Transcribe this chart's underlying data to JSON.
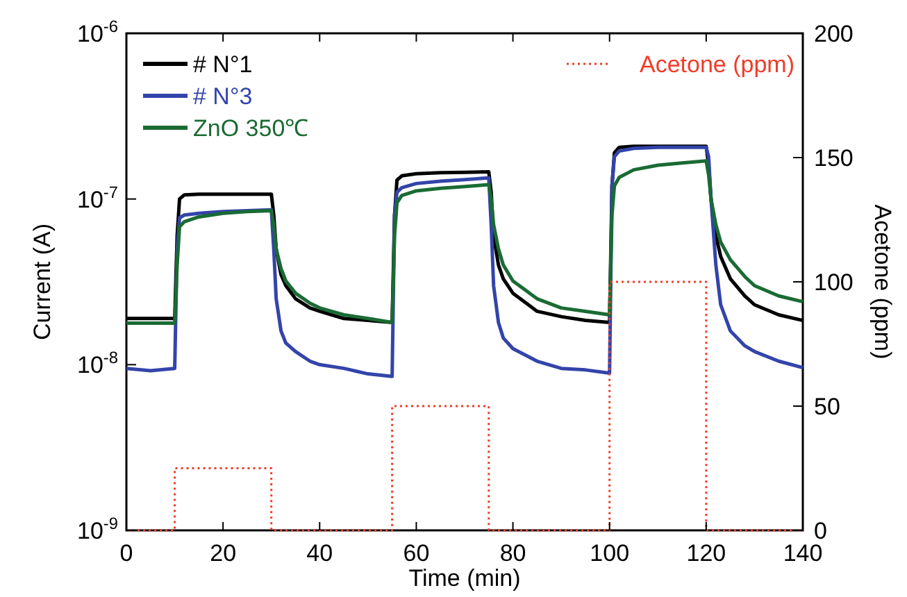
{
  "chart_data": {
    "type": "line",
    "xlabel": "Time (min)",
    "ylabel": "Current (A)",
    "y2label": "Acetone (ppm)",
    "log": "y",
    "grid": false,
    "legend": "top left",
    "marker": "none",
    "xlim": [
      0,
      140
    ],
    "xticks": [
      0,
      20,
      40,
      60,
      80,
      100,
      120,
      140
    ],
    "ylim": [
      1e-09,
      1e-06
    ],
    "yticks": [
      {
        "value": 1e-09,
        "label": "10$^{-9}$"
      },
      {
        "value": 1e-08,
        "label": "10$^{-8}$"
      },
      {
        "value": 1e-07,
        "label": "10$^{-7}$"
      },
      {
        "value": 1e-06,
        "label": "10$^{-6}$"
      }
    ],
    "y2lim": [
      0,
      200
    ],
    "y2ticks": [
      0,
      50,
      100,
      150,
      200
    ],
    "x": [
      0,
      5,
      10,
      10.5,
      11,
      12,
      15,
      20,
      25,
      30,
      30.5,
      31,
      32,
      33,
      35,
      38,
      40,
      45,
      50,
      55,
      55.5,
      56,
      57,
      60,
      65,
      70,
      75,
      75.5,
      76,
      77,
      78,
      80,
      85,
      90,
      95,
      100,
      100.5,
      101,
      102,
      105,
      110,
      115,
      120,
      120.5,
      121,
      122,
      123,
      125,
      128,
      130,
      135,
      140
    ],
    "series": [
      {
        "name": "# N°1",
        "color": "#000000",
        "values": [
          1.9e-08,
          1.9e-08,
          1.9e-08,
          6e-08,
          1e-07,
          1.06e-07,
          1.07e-07,
          1.07e-07,
          1.07e-07,
          1.07e-07,
          8e-08,
          5e-08,
          3.5e-08,
          3e-08,
          2.5e-08,
          2.2e-08,
          2.1e-08,
          1.9e-08,
          1.85e-08,
          1.8e-08,
          8e-08,
          1.3e-07,
          1.38e-07,
          1.42e-07,
          1.44e-07,
          1.45e-07,
          1.46e-07,
          1.1e-07,
          6e-08,
          4e-08,
          3.3e-08,
          2.7e-08,
          2.1e-08,
          1.95e-08,
          1.85e-08,
          1.8e-08,
          1.2e-07,
          1.9e-07,
          2.05e-07,
          2.08e-07,
          2.08e-07,
          2.08e-07,
          2.08e-07,
          1.6e-07,
          1e-07,
          6e-08,
          4.5e-08,
          3.3e-08,
          2.6e-08,
          2.3e-08,
          2e-08,
          1.85e-08
        ]
      },
      {
        "name": "# N°3",
        "color": "#3344aa",
        "values": [
          9.5e-09,
          9.2e-09,
          9.5e-09,
          5e-08,
          7.7e-08,
          8e-08,
          8.2e-08,
          8.4e-08,
          8.5e-08,
          8.6e-08,
          5e-08,
          2.5e-08,
          1.6e-08,
          1.35e-08,
          1.2e-08,
          1.05e-08,
          1e-08,
          9.5e-09,
          8.8e-09,
          8.5e-09,
          8e-08,
          1.1e-07,
          1.17e-07,
          1.24e-07,
          1.28e-07,
          1.31e-07,
          1.34e-07,
          7e-08,
          3e-08,
          1.8e-08,
          1.45e-08,
          1.25e-08,
          1.05e-08,
          9.5e-09,
          9.3e-09,
          8.9e-09,
          1.2e-07,
          1.8e-07,
          1.95e-07,
          2.02e-07,
          2.05e-07,
          2.05e-07,
          2.05e-07,
          1.8e-07,
          1e-07,
          4e-08,
          2.3e-08,
          1.6e-08,
          1.3e-08,
          1.2e-08,
          1.05e-08,
          9.6e-09
        ]
      },
      {
        "name": "ZnO 350℃",
        "color": "#1a6b33",
        "values": [
          1.78e-08,
          1.78e-08,
          1.78e-08,
          4e-08,
          6.8e-08,
          7.3e-08,
          7.8e-08,
          8.2e-08,
          8.4e-08,
          8.5e-08,
          7e-08,
          5e-08,
          3.8e-08,
          3.2e-08,
          2.7e-08,
          2.35e-08,
          2.2e-08,
          2e-08,
          1.9e-08,
          1.8e-08,
          6e-08,
          9.5e-08,
          1.05e-07,
          1.12e-07,
          1.16e-07,
          1.19e-07,
          1.22e-07,
          1e-07,
          7e-08,
          5e-08,
          4e-08,
          3.2e-08,
          2.5e-08,
          2.2e-08,
          2.1e-08,
          2e-08,
          8e-08,
          1.2e-07,
          1.35e-07,
          1.5e-07,
          1.6e-07,
          1.65e-07,
          1.7e-07,
          1.4e-07,
          1e-07,
          7e-08,
          5.5e-08,
          4.3e-08,
          3.4e-08,
          3e-08,
          2.6e-08,
          2.4e-08
        ]
      },
      {
        "name": "Acetone (ppm)",
        "color": "#f03c28",
        "axis": "y2",
        "line_style": "dotted",
        "x": [
          0,
          10,
          10,
          30,
          30,
          55,
          55,
          75,
          75,
          100,
          100,
          120,
          120,
          140
        ],
        "values": [
          0,
          0,
          25,
          25,
          0,
          0,
          50,
          50,
          0,
          0,
          100,
          100,
          0,
          0
        ]
      }
    ]
  }
}
